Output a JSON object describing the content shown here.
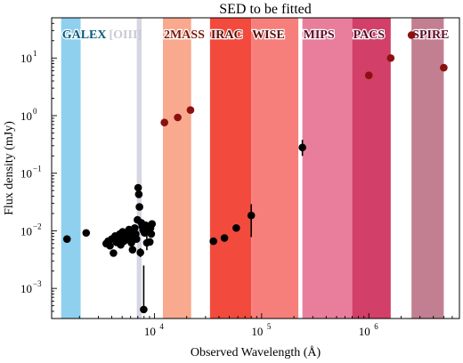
{
  "chart_data": {
    "type": "scatter",
    "title": "SED to be fitted",
    "xlabel": "Observed Wavelength (Å)",
    "ylabel": "Flux density (mJy)",
    "x_scale": "log",
    "y_scale": "log",
    "xlim": [
      1100,
      7000000
    ],
    "ylim": [
      0.0003,
      50
    ],
    "grid": false,
    "x_ticks": [
      {
        "value": 10000,
        "base": "10",
        "exp": "4"
      },
      {
        "value": 100000,
        "base": "10",
        "exp": "5"
      },
      {
        "value": 1000000,
        "base": "10",
        "exp": "6"
      }
    ],
    "y_ticks": [
      {
        "value": 0.001,
        "base": "10",
        "exp": "−3"
      },
      {
        "value": 0.01,
        "base": "10",
        "exp": "−2"
      },
      {
        "value": 0.1,
        "base": "10",
        "exp": "−1"
      },
      {
        "value": 1,
        "base": "10",
        "exp": "0"
      },
      {
        "value": 10,
        "base": "10",
        "exp": "1"
      }
    ],
    "bands": [
      {
        "label": "GALEX",
        "x_start": 1350,
        "x_end": 2050,
        "color": "#8fd0ee",
        "label_fill": "#0a5a7a"
      },
      {
        "label": "[OIII]",
        "x_start": 6850,
        "x_end": 7600,
        "color": "#d6d6e4",
        "label_fill": "#c9c9d4"
      },
      {
        "label": "2MASS",
        "x_start": 12000,
        "x_end": 22000,
        "color": "#f9a98e",
        "label_fill": "#7a1a0a"
      },
      {
        "label": "IRAC",
        "x_start": 33000,
        "x_end": 80000,
        "color": "#f34a3e",
        "label_fill": "#5a0c06"
      },
      {
        "label": "WISE",
        "x_start": 80000,
        "x_end": 220000,
        "color": "#f77f7b",
        "label_fill": "#5a0c06"
      },
      {
        "label": "MIPS",
        "x_start": 240000,
        "x_end": 700000,
        "color": "#e97e9c",
        "label_fill": "#5c0a26"
      },
      {
        "label": "PACS",
        "x_start": 700000,
        "x_end": 1600000,
        "color": "#d23f68",
        "label_fill": "#5c0a26"
      },
      {
        "label": "SPIRE",
        "x_start": 2500000,
        "x_end": 5000000,
        "color": "#c37f92",
        "label_fill": "#5c0a26"
      }
    ],
    "series": [
      {
        "marker_color": "#000000",
        "points": [
          {
            "x": 1530,
            "y": 0.0072
          },
          {
            "x": 2310,
            "y": 0.0092
          },
          {
            "x": 3550,
            "y": 0.006
          },
          {
            "x": 3700,
            "y": 0.0066
          },
          {
            "x": 3850,
            "y": 0.0055
          },
          {
            "x": 4000,
            "y": 0.0072
          },
          {
            "x": 4150,
            "y": 0.0041,
            "yerr": [
              0.0036,
              0.0047
            ]
          },
          {
            "x": 4300,
            "y": 0.0081
          },
          {
            "x": 4450,
            "y": 0.0063
          },
          {
            "x": 4600,
            "y": 0.0069
          },
          {
            "x": 4750,
            "y": 0.0088
          },
          {
            "x": 4850,
            "y": 0.0057
          },
          {
            "x": 4950,
            "y": 0.0075
          },
          {
            "x": 5050,
            "y": 0.0096
          },
          {
            "x": 5200,
            "y": 0.0066
          },
          {
            "x": 5350,
            "y": 0.0085
          },
          {
            "x": 5500,
            "y": 0.0092
          },
          {
            "x": 5650,
            "y": 0.0071
          },
          {
            "x": 5800,
            "y": 0.0105
          },
          {
            "x": 5950,
            "y": 0.0078
          },
          {
            "x": 6100,
            "y": 0.0062
          },
          {
            "x": 6250,
            "y": 0.0047
          },
          {
            "x": 6400,
            "y": 0.0098
          },
          {
            "x": 6550,
            "y": 0.0112
          },
          {
            "x": 6700,
            "y": 0.0088
          },
          {
            "x": 6800,
            "y": 0.0072
          },
          {
            "x": 6950,
            "y": 0.0155
          },
          {
            "x": 7050,
            "y": 0.056
          },
          {
            "x": 7150,
            "y": 0.043
          },
          {
            "x": 7250,
            "y": 0.026
          },
          {
            "x": 7400,
            "y": 0.0042,
            "yerr": [
              0.0035,
              0.005
            ]
          },
          {
            "x": 7550,
            "y": 0.0138
          },
          {
            "x": 7700,
            "y": 0.012
          },
          {
            "x": 7850,
            "y": 0.0102
          },
          {
            "x": 7950,
            "y": 0.00043,
            "yerr": [
              0.0004,
              0.0025
            ]
          },
          {
            "x": 8100,
            "y": 0.0092
          },
          {
            "x": 8300,
            "y": 0.0125
          },
          {
            "x": 8500,
            "y": 0.0062,
            "yerr": [
              0.0046,
              0.0082
            ]
          },
          {
            "x": 8700,
            "y": 0.0108
          },
          {
            "x": 8900,
            "y": 0.0095
          },
          {
            "x": 9050,
            "y": 0.0064
          },
          {
            "x": 9200,
            "y": 0.0112
          },
          {
            "x": 9350,
            "y": 0.0088
          },
          {
            "x": 9500,
            "y": 0.0132
          },
          {
            "x": 35500,
            "y": 0.0066
          },
          {
            "x": 45000,
            "y": 0.0075
          },
          {
            "x": 58000,
            "y": 0.0112
          },
          {
            "x": 80000,
            "y": 0.0185,
            "yerr": [
              0.0078,
              0.029
            ]
          },
          {
            "x": 240000,
            "y": 0.28,
            "yerr": [
              0.2,
              0.38
            ]
          }
        ]
      },
      {
        "marker_color": "#8b1010",
        "points": [
          {
            "x": 12400,
            "y": 0.76
          },
          {
            "x": 16500,
            "y": 0.93
          },
          {
            "x": 21700,
            "y": 1.25
          },
          {
            "x": 1000000,
            "y": 5.0
          },
          {
            "x": 1600000,
            "y": 10.0
          },
          {
            "x": 2500000,
            "y": 25.0
          },
          {
            "x": 5000000,
            "y": 6.8
          }
        ]
      }
    ]
  }
}
